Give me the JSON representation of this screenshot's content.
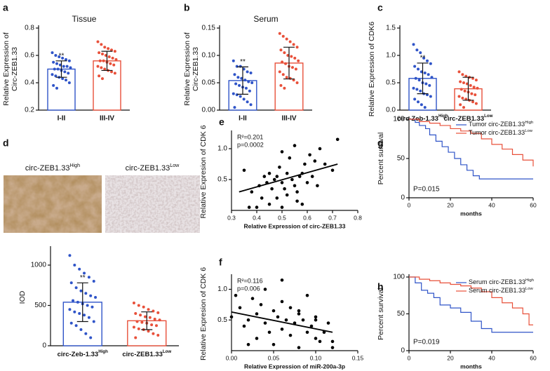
{
  "chart_data": [
    {
      "type": "bar",
      "label": "a",
      "title": "Tissue",
      "ylabel": [
        "Relative Expression of",
        "Circ-ZEB1.33"
      ],
      "categories": [
        "I-II",
        "III-IV"
      ],
      "values": [
        0.5,
        0.56
      ],
      "errors": [
        0.06,
        0.07
      ],
      "colors": [
        "#2f54c8",
        "#e8503a"
      ],
      "significance": [
        "**",
        null
      ],
      "points": [
        [
          0.62,
          0.6,
          0.59,
          0.58,
          0.57,
          0.56,
          0.55,
          0.54,
          0.53,
          0.52,
          0.52,
          0.51,
          0.5,
          0.5,
          0.49,
          0.48,
          0.47,
          0.46,
          0.45,
          0.44,
          0.43,
          0.42,
          0.4,
          0.38,
          0.36
        ],
        [
          0.7,
          0.68,
          0.66,
          0.65,
          0.64,
          0.63,
          0.62,
          0.61,
          0.6,
          0.59,
          0.58,
          0.57,
          0.56,
          0.56,
          0.55,
          0.54,
          0.53,
          0.52,
          0.51,
          0.5,
          0.49,
          0.48,
          0.47,
          0.45,
          0.43
        ]
      ],
      "ylim": [
        0.2,
        0.8
      ],
      "yticks": [
        0.2,
        0.4,
        0.6,
        0.8
      ]
    },
    {
      "type": "bar",
      "label": "b",
      "title": "Serum",
      "ylabel": [
        "Relative Expression of",
        "Circ-ZEB1.33"
      ],
      "categories": [
        "I-II",
        "III-IV"
      ],
      "values": [
        0.054,
        0.086
      ],
      "errors": [
        0.025,
        0.029
      ],
      "colors": [
        "#2f54c8",
        "#e8503a"
      ],
      "significance": [
        "**",
        null
      ],
      "points": [
        [
          0.09,
          0.08,
          0.08,
          0.075,
          0.07,
          0.068,
          0.065,
          0.06,
          0.058,
          0.055,
          0.052,
          0.05,
          0.048,
          0.045,
          0.042,
          0.04,
          0.035,
          0.03,
          0.028,
          0.025,
          0.02,
          0.015,
          0.01,
          0.005
        ],
        [
          0.14,
          0.135,
          0.13,
          0.125,
          0.12,
          0.115,
          0.11,
          0.105,
          0.1,
          0.098,
          0.095,
          0.09,
          0.088,
          0.085,
          0.08,
          0.078,
          0.075,
          0.07,
          0.065,
          0.06,
          0.058,
          0.055,
          0.05,
          0.045,
          0.04
        ]
      ],
      "ylim": [
        0,
        0.15
      ],
      "yticks": [
        {
          "value": 0,
          "label": "0.00"
        },
        0.05,
        {
          "value": 0.1,
          "label": "0.10"
        },
        0.15
      ]
    },
    {
      "type": "bar",
      "label": "c",
      "ylabel": [
        "Relative Expression of CDK6"
      ],
      "categories": [
        "circ-Zeb-1.33",
        "circ-ZEB1.33"
      ],
      "category_sups": [
        "High",
        "Low"
      ],
      "values": [
        0.58,
        0.39
      ],
      "errors": [
        0.28,
        0.21
      ],
      "colors": [
        "#2f54c8",
        "#e8503a"
      ],
      "significance": [
        "**",
        null
      ],
      "points": [
        [
          1.2,
          1.1,
          1.05,
          0.95,
          0.9,
          0.85,
          0.8,
          0.75,
          0.7,
          0.68,
          0.65,
          0.6,
          0.58,
          0.55,
          0.5,
          0.48,
          0.45,
          0.4,
          0.38,
          0.35,
          0.3,
          0.28,
          0.25,
          0.2,
          0.15,
          0.1,
          0.05
        ],
        [
          0.7,
          0.65,
          0.62,
          0.6,
          0.58,
          0.55,
          0.52,
          0.5,
          0.48,
          0.45,
          0.42,
          0.4,
          0.38,
          0.35,
          0.33,
          0.3,
          0.28,
          0.25,
          0.22,
          0.2,
          0.18,
          0.15,
          0.12,
          0.1,
          0.05
        ]
      ],
      "ylim": [
        0,
        1.5
      ],
      "yticks": [
        {
          "value": 0,
          "label": "0.0"
        },
        0.5,
        {
          "value": 1,
          "label": "1.0"
        },
        1.5
      ]
    },
    {
      "type": "bar",
      "label": "d",
      "ylabel": [
        "IOD"
      ],
      "image_labels": [
        {
          "text": "circ-ZEB1.33",
          "sup": "High"
        },
        {
          "text": "circ-ZEB1.33",
          "sup": "Low"
        }
      ],
      "categories": [
        "circ-Zeb-1.33",
        "circ-ZEB1.33"
      ],
      "category_sups": [
        "High",
        "Low"
      ],
      "values": [
        540,
        310
      ],
      "errors": [
        240,
        110
      ],
      "colors": [
        "#2f54c8",
        "#e8503a"
      ],
      "significance": [
        "**",
        null
      ],
      "points": [
        [
          1120,
          1000,
          950,
          900,
          850,
          800,
          780,
          720,
          680,
          650,
          620,
          600,
          560,
          540,
          520,
          500,
          480,
          450,
          420,
          400,
          380,
          350,
          300,
          280,
          250,
          200,
          150,
          100
        ],
        [
          530,
          500,
          480,
          450,
          430,
          410,
          400,
          380,
          360,
          350,
          330,
          320,
          300,
          290,
          280,
          260,
          250,
          230,
          210,
          200,
          180,
          150,
          130,
          100
        ]
      ],
      "ylim": [
        0,
        1200
      ],
      "yticks": [
        0,
        500,
        1000
      ]
    },
    {
      "type": "scatter",
      "label": "e",
      "ylabel": [
        "Relative Expresion of CDK 6"
      ],
      "xlabel": "Relative Expression of circ-ZEB1.33",
      "annotations": [
        "R²=0.201",
        "p=0.0002"
      ],
      "x": [
        0.35,
        0.37,
        0.38,
        0.4,
        0.41,
        0.42,
        0.43,
        0.44,
        0.45,
        0.45,
        0.46,
        0.47,
        0.48,
        0.48,
        0.49,
        0.5,
        0.5,
        0.51,
        0.52,
        0.52,
        0.53,
        0.54,
        0.55,
        0.55,
        0.56,
        0.57,
        0.58,
        0.58,
        0.59,
        0.6,
        0.61,
        0.62,
        0.63,
        0.64,
        0.65,
        0.67,
        0.7,
        0.72,
        0.5,
        0.56
      ],
      "values": [
        0.65,
        0.05,
        0.3,
        0.05,
        0.4,
        0.2,
        0.55,
        0.45,
        0.1,
        0.6,
        0.35,
        0.5,
        0.2,
        0.55,
        0.7,
        0.05,
        0.45,
        0.35,
        0.6,
        0.25,
        0.85,
        0.5,
        0.4,
        1.05,
        0.3,
        0.55,
        0.6,
        0.1,
        0.75,
        0.45,
        0.9,
        0.55,
        0.8,
        0.4,
        1.0,
        0.75,
        0.65,
        1.15,
        0.95,
        0.15
      ],
      "fit": {
        "x": [
          0.33,
          0.72
        ],
        "values": [
          0.3,
          0.75
        ]
      },
      "color": "#000000",
      "xlim": [
        0.3,
        0.8
      ],
      "xticks": [
        0.3,
        0.4,
        0.5,
        0.6,
        0.7,
        0.8
      ],
      "ylim": [
        0,
        1.25
      ],
      "yticks": [
        0.5,
        {
          "value": 1,
          "label": "1.0"
        }
      ]
    },
    {
      "type": "scatter",
      "label": "f",
      "ylabel": [
        "Relative Expresion of CDK 6"
      ],
      "xlabel": "Relative Expression of miR-200a-3p",
      "annotations": [
        "R²=0.116",
        "p=0.006"
      ],
      "x": [
        0.0,
        0.005,
        0.01,
        0.015,
        0.02,
        0.025,
        0.03,
        0.03,
        0.035,
        0.04,
        0.04,
        0.045,
        0.05,
        0.05,
        0.055,
        0.06,
        0.06,
        0.065,
        0.07,
        0.07,
        0.075,
        0.08,
        0.08,
        0.085,
        0.09,
        0.09,
        0.095,
        0.1,
        0.1,
        0.105,
        0.11,
        0.115,
        0.12,
        0.12,
        0.02,
        0.06,
        0.08,
        0.1
      ],
      "values": [
        0.55,
        0.9,
        0.7,
        0.4,
        0.5,
        0.85,
        0.6,
        0.2,
        0.75,
        0.45,
        1.0,
        0.3,
        0.65,
        0.1,
        0.55,
        1.15,
        0.35,
        0.5,
        0.25,
        0.7,
        0.45,
        0.6,
        0.05,
        0.5,
        0.9,
        0.3,
        0.4,
        0.2,
        0.55,
        0.15,
        0.3,
        0.45,
        0.15,
        0.05,
        0.1,
        0.8,
        0.65,
        0.5
      ],
      "fit": {
        "x": [
          0,
          0.12
        ],
        "values": [
          0.63,
          0.3
        ]
      },
      "color": "#000000",
      "xlim": [
        0,
        0.15
      ],
      "xticks": [
        {
          "value": 0,
          "label": "0.00"
        },
        0.05,
        {
          "value": 0.1,
          "label": "0.10"
        },
        0.15
      ],
      "ylim": [
        0,
        1.2
      ],
      "yticks": [
        0.5,
        {
          "value": 1,
          "label": "1.0"
        }
      ]
    },
    {
      "type": "survival",
      "label": "g",
      "ylabel": [
        "Percent survival"
      ],
      "xlabel": "months",
      "annotations": [
        "P=0.015"
      ],
      "series": [
        {
          "name": "Tumor circ-ZEB1.33",
          "name_sup": "High",
          "color": "#2f54c8",
          "x": [
            0,
            3,
            5,
            8,
            10,
            13,
            16,
            19,
            22,
            25,
            28,
            31,
            34,
            60
          ],
          "values": [
            100,
            96,
            92,
            88,
            80,
            72,
            65,
            58,
            50,
            42,
            35,
            28,
            24,
            24
          ]
        },
        {
          "name": "Tumor circ-ZEB1.33",
          "name_sup": "Low",
          "color": "#e8503a",
          "x": [
            0,
            5,
            10,
            15,
            20,
            25,
            30,
            35,
            40,
            45,
            50,
            55,
            60
          ],
          "values": [
            100,
            97,
            95,
            92,
            88,
            85,
            82,
            75,
            68,
            62,
            55,
            48,
            40
          ]
        }
      ],
      "xlim": [
        0,
        60
      ],
      "xticks": [
        0,
        20,
        40,
        60
      ],
      "ylim": [
        0,
        100
      ],
      "yticks": [
        0,
        50,
        100
      ],
      "legend": "top-right"
    },
    {
      "type": "survival",
      "label": "h",
      "ylabel": [
        "Percent survival"
      ],
      "xlabel": "months",
      "annotations": [
        "P=0.019"
      ],
      "series": [
        {
          "name": "Serum circ-ZEB1.33",
          "name_sup": "High",
          "color": "#2f54c8",
          "x": [
            0,
            3,
            6,
            9,
            12,
            15,
            20,
            25,
            30,
            35,
            40,
            60
          ],
          "values": [
            100,
            92,
            82,
            78,
            72,
            62,
            58,
            52,
            40,
            30,
            25,
            25
          ]
        },
        {
          "name": "Serum circ-ZEB1.33",
          "name_sup": "Low",
          "color": "#e8503a",
          "x": [
            0,
            5,
            10,
            15,
            20,
            25,
            30,
            35,
            40,
            45,
            50,
            55,
            58,
            60
          ],
          "values": [
            100,
            97,
            95,
            92,
            90,
            88,
            85,
            80,
            72,
            65,
            58,
            50,
            35,
            35
          ]
        }
      ],
      "xlim": [
        0,
        60
      ],
      "xticks": [
        0,
        20,
        40,
        60
      ],
      "ylim": [
        0,
        100
      ],
      "yticks": [
        0,
        50,
        100
      ],
      "legend": "top-right"
    }
  ]
}
